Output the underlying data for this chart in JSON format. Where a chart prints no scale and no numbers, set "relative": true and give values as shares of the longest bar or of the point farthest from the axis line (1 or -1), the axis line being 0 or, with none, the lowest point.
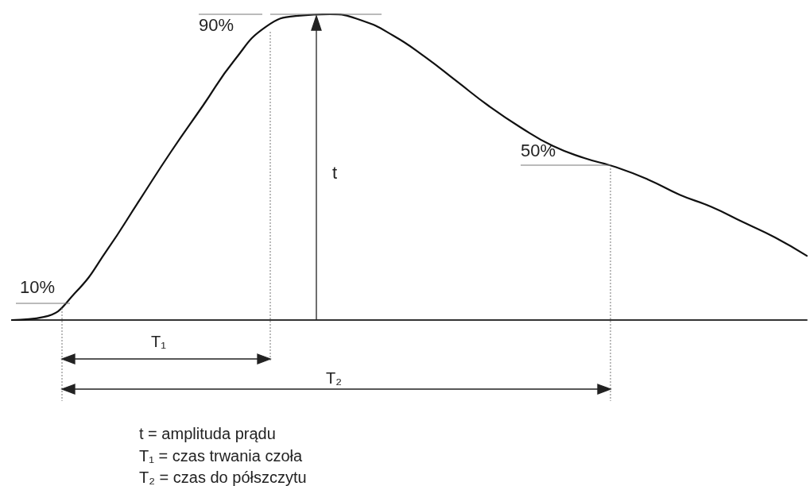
{
  "chart_data": {
    "type": "line",
    "relative": true,
    "color": "#111111",
    "marker": "none",
    "line_style": "solid",
    "grid": false,
    "categories": [
      null,
      null,
      null,
      null,
      null,
      null,
      null,
      null,
      null,
      null,
      null,
      null,
      null,
      null,
      null,
      null,
      null,
      null,
      null,
      null,
      null,
      null,
      null,
      null,
      null,
      null
    ],
    "values": [
      0,
      0.01,
      0.09,
      0.23,
      0.39,
      0.55,
      0.7,
      0.85,
      0.96,
      0.995,
      1,
      0.98,
      0.93,
      0.86,
      0.78,
      0.7,
      0.63,
      0.57,
      0.53,
      0.5,
      0.46,
      0.41,
      0.37,
      0.32,
      0.27,
      0.21
    ],
    "annotations": [
      "10%",
      "90%",
      "50%",
      "t",
      "T₁",
      "T₂",
      "t = amplituda prądu",
      "T₁ = czas trwania czoła",
      "T₂ = czas do półszczytu"
    ]
  }
}
